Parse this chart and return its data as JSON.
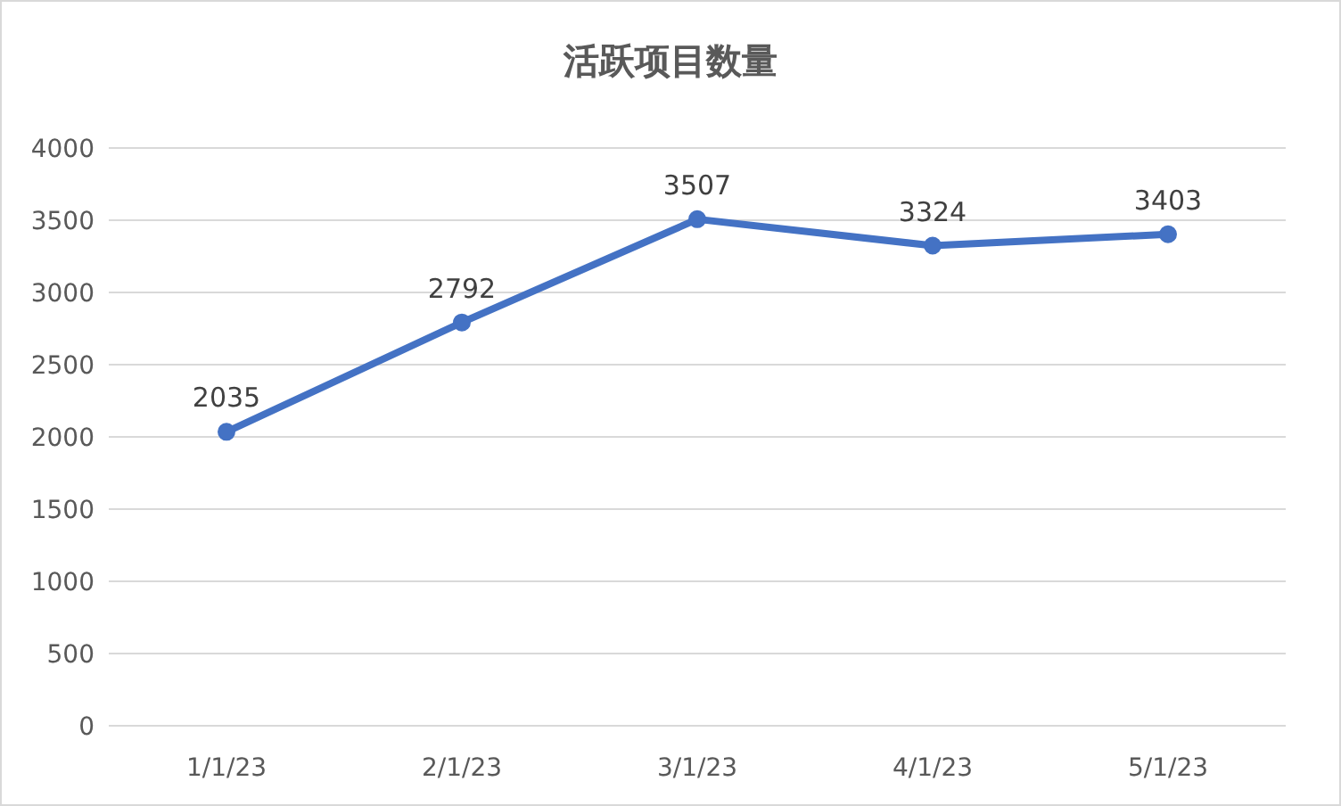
{
  "chart_data": {
    "type": "line",
    "title": "活跃项目数量",
    "categories": [
      "1/1/23",
      "2/1/23",
      "3/1/23",
      "4/1/23",
      "5/1/23"
    ],
    "series": [
      {
        "color": "#4472c4",
        "values": [
          2035,
          2792,
          3507,
          3324,
          3403
        ]
      }
    ],
    "ylim": [
      0,
      4000
    ],
    "yticks": [
      0,
      500,
      1000,
      1500,
      2000,
      2500,
      3000,
      3500,
      4000
    ],
    "grid": "y",
    "marker": "circle",
    "data_labels": true
  }
}
